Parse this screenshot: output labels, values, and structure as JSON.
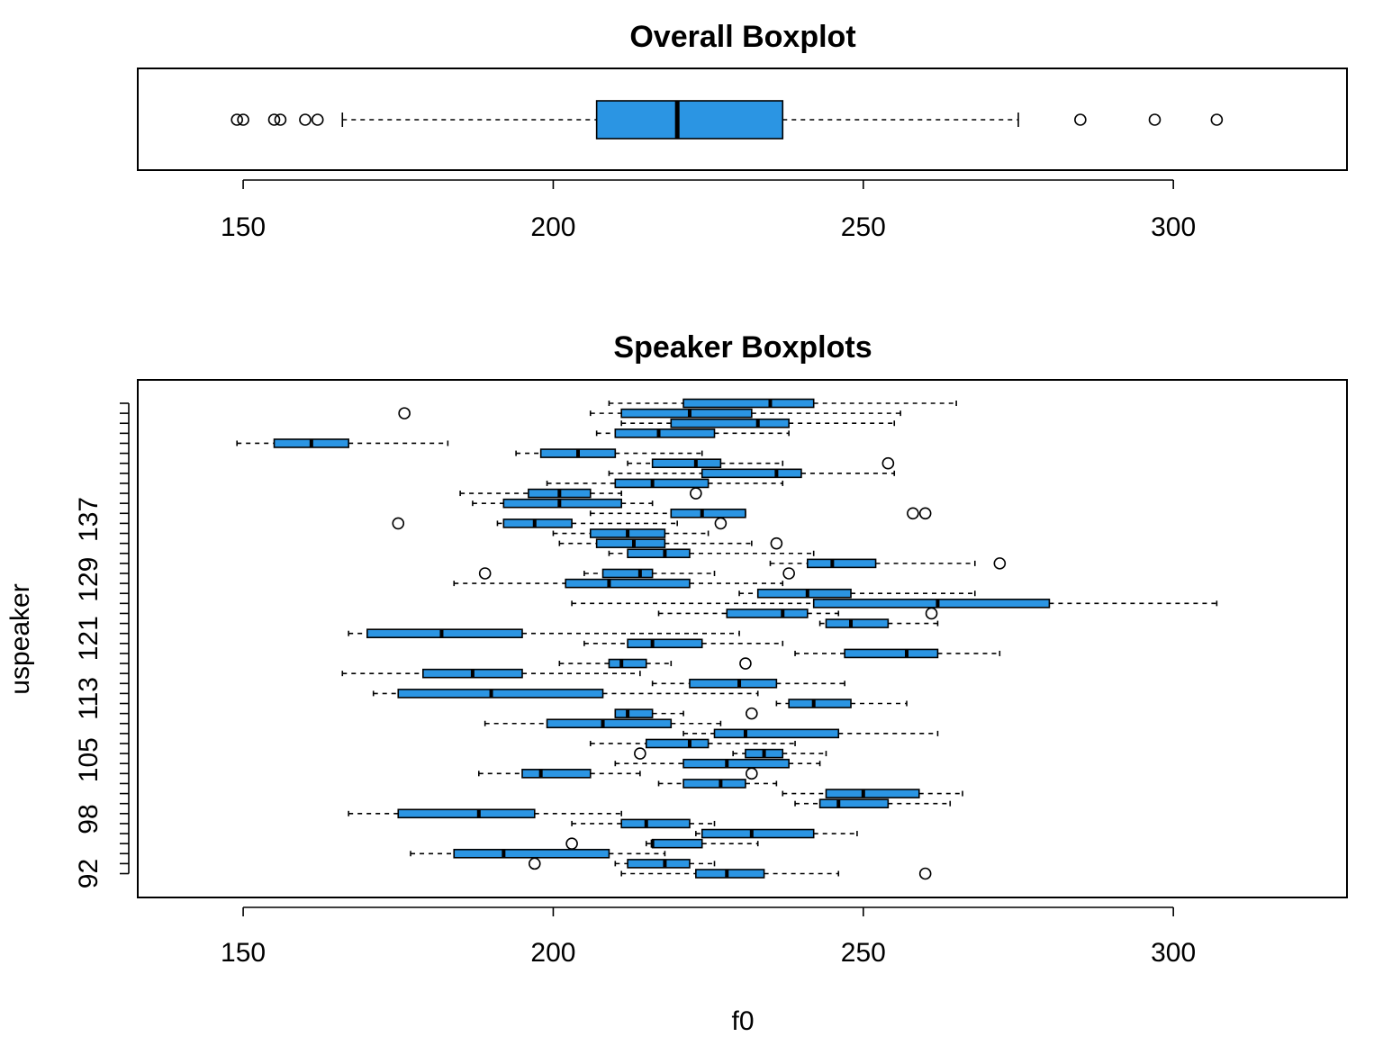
{
  "colors": {
    "box_fill": "#2b95e3",
    "stroke": "#000000",
    "background": "#ffffff"
  },
  "chart_data": [
    {
      "type": "boxplot",
      "orientation": "horizontal",
      "title": "Overall Boxplot",
      "xlabel": "",
      "ylabel": "",
      "xlim": [
        133,
        328
      ],
      "x_ticks": [
        "150",
        "200",
        "250",
        "300"
      ],
      "grid": false,
      "box": {
        "whisker_low": 166,
        "q1": 207,
        "median": 220,
        "q3": 237,
        "whisker_high": 275
      },
      "outliers": [
        149,
        150,
        155,
        156,
        160,
        162,
        285,
        297,
        307
      ]
    },
    {
      "type": "boxplot",
      "orientation": "horizontal",
      "title": "Speaker Boxplots",
      "xlabel": "f0",
      "ylabel": "uspeaker",
      "xlim": [
        133,
        328
      ],
      "x_ticks": [
        "150",
        "200",
        "250",
        "300"
      ],
      "y_ticks": [
        "92",
        "98",
        "105",
        "113",
        "121",
        "129",
        "137"
      ],
      "grid": false,
      "speakers": [
        {
          "min": 211,
          "q1": 223,
          "median": 228,
          "q3": 234,
          "max": 246,
          "outliers": [
            260
          ]
        },
        {
          "min": 210,
          "q1": 212,
          "median": 218,
          "q3": 222,
          "max": 226,
          "outliers": [
            197
          ]
        },
        {
          "min": 177,
          "q1": 184,
          "median": 192,
          "q3": 209,
          "max": 218,
          "outliers": []
        },
        {
          "min": 215,
          "q1": 216,
          "median": 216,
          "q3": 224,
          "max": 233,
          "outliers": [
            203
          ]
        },
        {
          "min": 223,
          "q1": 224,
          "median": 232,
          "q3": 242,
          "max": 249,
          "outliers": []
        },
        {
          "min": 203,
          "q1": 211,
          "median": 215,
          "q3": 222,
          "max": 226,
          "outliers": []
        },
        {
          "min": 167,
          "q1": 175,
          "median": 188,
          "q3": 197,
          "max": 211,
          "outliers": []
        },
        {
          "min": 239,
          "q1": 243,
          "median": 246,
          "q3": 254,
          "max": 264,
          "outliers": []
        },
        {
          "min": 237,
          "q1": 244,
          "median": 250,
          "q3": 259,
          "max": 266,
          "outliers": []
        },
        {
          "min": 217,
          "q1": 221,
          "median": 227,
          "q3": 231,
          "max": 236,
          "outliers": []
        },
        {
          "min": 188,
          "q1": 195,
          "median": 198,
          "q3": 206,
          "max": 214,
          "outliers": [
            232
          ]
        },
        {
          "min": 210,
          "q1": 221,
          "median": 228,
          "q3": 238,
          "max": 243,
          "outliers": []
        },
        {
          "min": 229,
          "q1": 231,
          "median": 234,
          "q3": 237,
          "max": 244,
          "outliers": [
            214
          ]
        },
        {
          "min": 206,
          "q1": 215,
          "median": 222,
          "q3": 225,
          "max": 239,
          "outliers": []
        },
        {
          "min": 221,
          "q1": 226,
          "median": 231,
          "q3": 246,
          "max": 262,
          "outliers": []
        },
        {
          "min": 189,
          "q1": 199,
          "median": 208,
          "q3": 219,
          "max": 227,
          "outliers": []
        },
        {
          "min": 210,
          "q1": 210,
          "median": 212,
          "q3": 216,
          "max": 221,
          "outliers": [
            232
          ]
        },
        {
          "min": 236,
          "q1": 238,
          "median": 242,
          "q3": 248,
          "max": 257,
          "outliers": []
        },
        {
          "min": 171,
          "q1": 175,
          "median": 190,
          "q3": 208,
          "max": 233,
          "outliers": []
        },
        {
          "min": 216,
          "q1": 222,
          "median": 230,
          "q3": 236,
          "max": 247,
          "outliers": []
        },
        {
          "min": 166,
          "q1": 179,
          "median": 187,
          "q3": 195,
          "max": 214,
          "outliers": []
        },
        {
          "min": 201,
          "q1": 209,
          "median": 211,
          "q3": 215,
          "max": 219,
          "outliers": [
            231
          ]
        },
        {
          "min": 239,
          "q1": 247,
          "median": 257,
          "q3": 262,
          "max": 272,
          "outliers": []
        },
        {
          "min": 205,
          "q1": 212,
          "median": 216,
          "q3": 224,
          "max": 237,
          "outliers": []
        },
        {
          "min": 167,
          "q1": 170,
          "median": 182,
          "q3": 195,
          "max": 230,
          "outliers": []
        },
        {
          "min": 243,
          "q1": 244,
          "median": 248,
          "q3": 254,
          "max": 262,
          "outliers": []
        },
        {
          "min": 217,
          "q1": 228,
          "median": 237,
          "q3": 241,
          "max": 246,
          "outliers": [
            261
          ]
        },
        {
          "min": 203,
          "q1": 242,
          "median": 262,
          "q3": 280,
          "max": 307,
          "outliers": []
        },
        {
          "min": 230,
          "q1": 233,
          "median": 241,
          "q3": 248,
          "max": 268,
          "outliers": []
        },
        {
          "min": 184,
          "q1": 202,
          "median": 209,
          "q3": 222,
          "max": 237,
          "outliers": []
        },
        {
          "min": 205,
          "q1": 208,
          "median": 214,
          "q3": 216,
          "max": 226,
          "outliers": [
            189,
            238
          ]
        },
        {
          "min": 235,
          "q1": 241,
          "median": 245,
          "q3": 252,
          "max": 268,
          "outliers": [
            272
          ]
        },
        {
          "min": 209,
          "q1": 212,
          "median": 218,
          "q3": 222,
          "max": 242,
          "outliers": []
        },
        {
          "min": 201,
          "q1": 207,
          "median": 213,
          "q3": 218,
          "max": 232,
          "outliers": [
            236
          ]
        },
        {
          "min": 200,
          "q1": 206,
          "median": 212,
          "q3": 218,
          "max": 225,
          "outliers": []
        },
        {
          "min": 191,
          "q1": 192,
          "median": 197,
          "q3": 203,
          "max": 220,
          "outliers": [
            175,
            227
          ]
        },
        {
          "min": 206,
          "q1": 219,
          "median": 224,
          "q3": 231,
          "max": 231,
          "outliers": [
            258,
            260
          ]
        },
        {
          "min": 187,
          "q1": 192,
          "median": 201,
          "q3": 211,
          "max": 216,
          "outliers": []
        },
        {
          "min": 185,
          "q1": 196,
          "median": 201,
          "q3": 206,
          "max": 211,
          "outliers": [
            223
          ]
        },
        {
          "min": 199,
          "q1": 210,
          "median": 216,
          "q3": 225,
          "max": 237,
          "outliers": []
        },
        {
          "min": 209,
          "q1": 224,
          "median": 236,
          "q3": 240,
          "max": 255,
          "outliers": []
        },
        {
          "min": 212,
          "q1": 216,
          "median": 223,
          "q3": 227,
          "max": 237,
          "outliers": [
            254
          ]
        },
        {
          "min": 194,
          "q1": 198,
          "median": 204,
          "q3": 210,
          "max": 224,
          "outliers": []
        },
        {
          "min": 149,
          "q1": 155,
          "median": 161,
          "q3": 167,
          "max": 183,
          "outliers": []
        },
        {
          "min": 207,
          "q1": 210,
          "median": 217,
          "q3": 226,
          "max": 238,
          "outliers": []
        },
        {
          "min": 211,
          "q1": 219,
          "median": 233,
          "q3": 238,
          "max": 255,
          "outliers": []
        },
        {
          "min": 206,
          "q1": 211,
          "median": 222,
          "q3": 232,
          "max": 256,
          "outliers": [
            176
          ]
        },
        {
          "min": 209,
          "q1": 221,
          "median": 235,
          "q3": 242,
          "max": 265,
          "outliers": []
        }
      ]
    }
  ]
}
